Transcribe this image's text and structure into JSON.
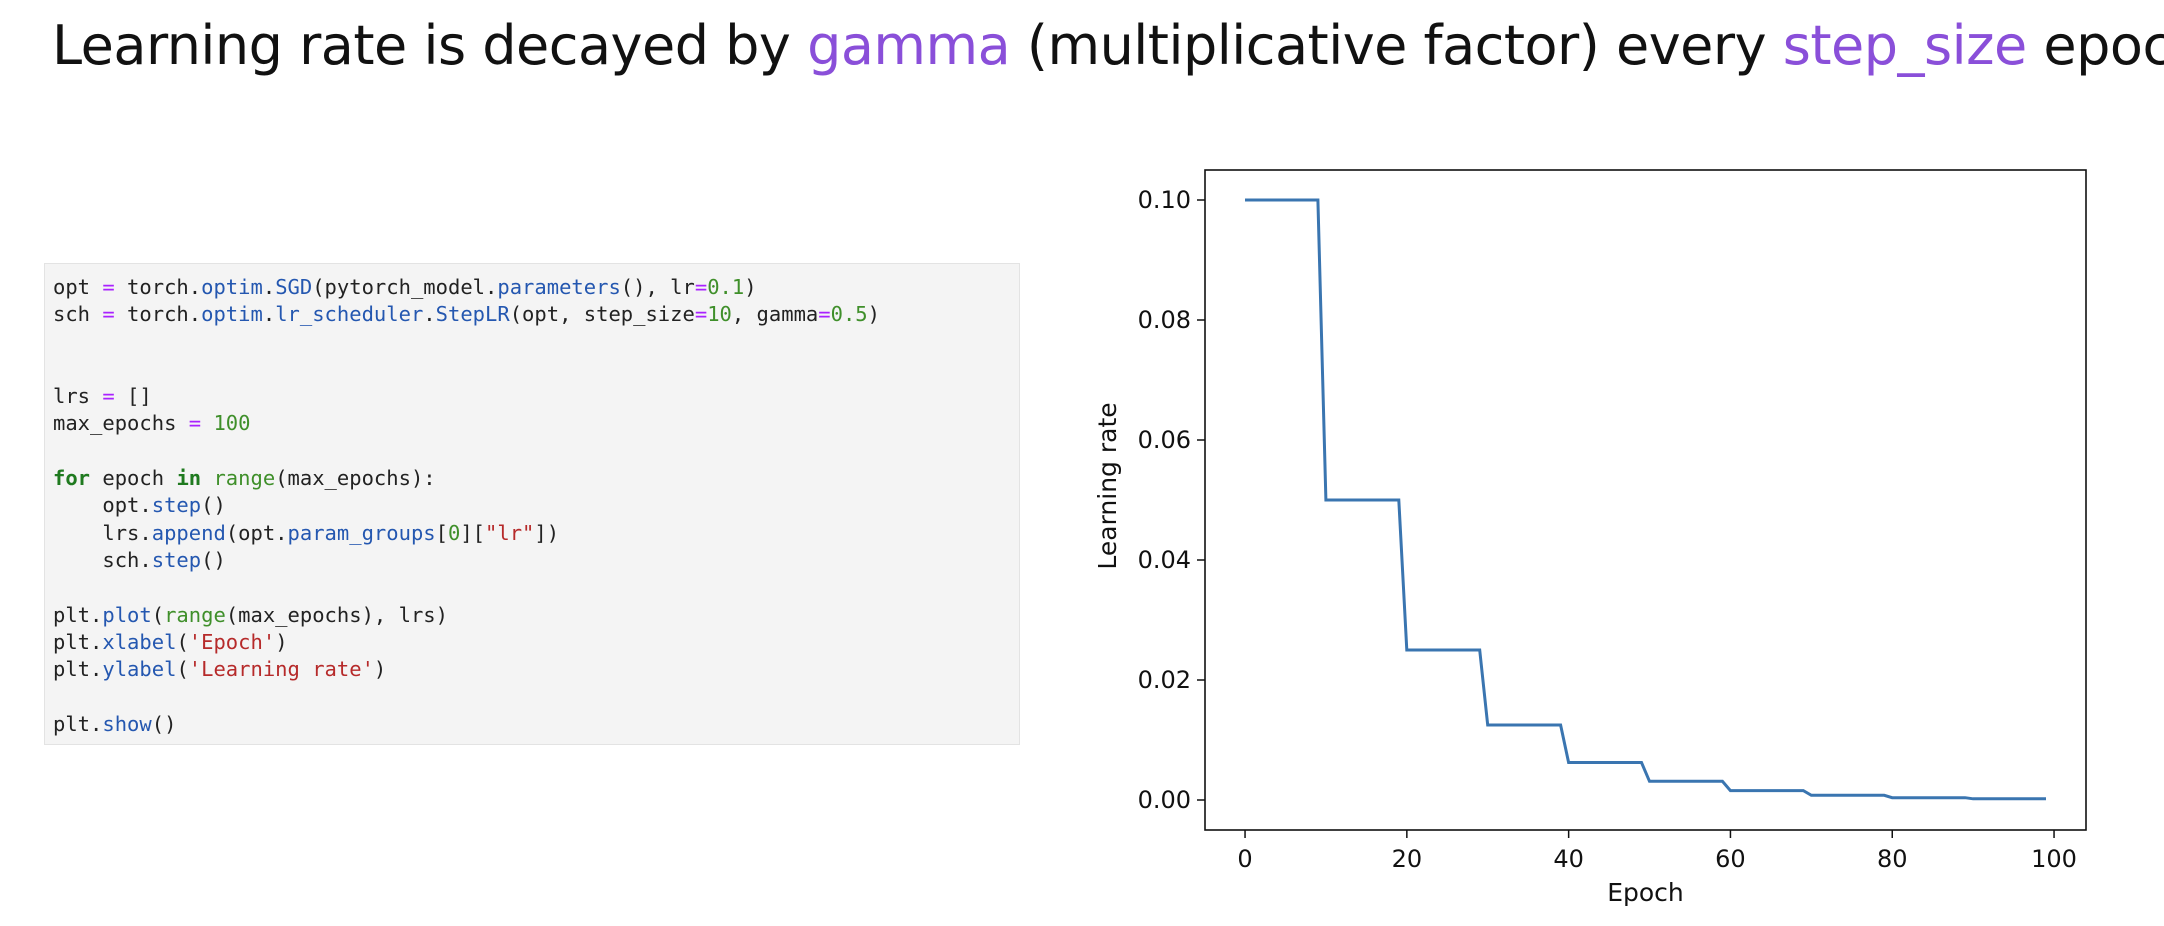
{
  "slide": {
    "title_parts": [
      "Learning rate is decayed by ",
      "gamma",
      " (multiplicative factor) every ",
      "step_size",
      " epochs"
    ],
    "accent_color": "#8a4fd9"
  },
  "code": {
    "lines": [
      [
        [
          "opt ",
          "plain"
        ],
        [
          "=",
          "op"
        ],
        [
          " torch.",
          "plain"
        ],
        [
          "optim",
          "attr"
        ],
        [
          ".",
          "plain"
        ],
        [
          "SGD",
          "attr"
        ],
        [
          "(pytorch_model.",
          "plain"
        ],
        [
          "parameters",
          "attr"
        ],
        [
          "(), lr",
          "plain"
        ],
        [
          "=",
          "op"
        ],
        [
          "0.1",
          "num"
        ],
        [
          ")",
          "plain"
        ]
      ],
      [
        [
          "sch ",
          "plain"
        ],
        [
          "=",
          "op"
        ],
        [
          " torch.",
          "plain"
        ],
        [
          "optim",
          "attr"
        ],
        [
          ".",
          "plain"
        ],
        [
          "lr_scheduler",
          "attr"
        ],
        [
          ".",
          "plain"
        ],
        [
          "StepLR",
          "attr"
        ],
        [
          "(opt, step_size",
          "plain"
        ],
        [
          "=",
          "op"
        ],
        [
          "10",
          "num"
        ],
        [
          ", gamma",
          "plain"
        ],
        [
          "=",
          "op"
        ],
        [
          "0.5",
          "num"
        ],
        [
          ")",
          "plain"
        ]
      ],
      [],
      [],
      [
        [
          "lrs ",
          "plain"
        ],
        [
          "=",
          "op"
        ],
        [
          " []",
          "plain"
        ]
      ],
      [
        [
          "max_epochs ",
          "plain"
        ],
        [
          "=",
          "op"
        ],
        [
          " ",
          "plain"
        ],
        [
          "100",
          "num"
        ]
      ],
      [],
      [
        [
          "for",
          "kw"
        ],
        [
          " epoch ",
          "plain"
        ],
        [
          "in",
          "kw"
        ],
        [
          " ",
          "plain"
        ],
        [
          "range",
          "bi"
        ],
        [
          "(max_epochs):",
          "plain"
        ]
      ],
      [
        [
          "    opt.",
          "plain"
        ],
        [
          "step",
          "attr"
        ],
        [
          "()",
          "plain"
        ]
      ],
      [
        [
          "    lrs.",
          "plain"
        ],
        [
          "append",
          "attr"
        ],
        [
          "(opt.",
          "plain"
        ],
        [
          "param_groups",
          "attr"
        ],
        [
          "[",
          "plain"
        ],
        [
          "0",
          "num"
        ],
        [
          "][",
          "plain"
        ],
        [
          "\"lr\"",
          "str"
        ],
        [
          "])",
          "plain"
        ]
      ],
      [
        [
          "    sch.",
          "plain"
        ],
        [
          "step",
          "attr"
        ],
        [
          "()",
          "plain"
        ]
      ],
      [],
      [
        [
          "plt.",
          "plain"
        ],
        [
          "plot",
          "attr"
        ],
        [
          "(",
          "plain"
        ],
        [
          "range",
          "bi"
        ],
        [
          "(max_epochs), lrs)",
          "plain"
        ]
      ],
      [
        [
          "plt.",
          "plain"
        ],
        [
          "xlabel",
          "attr"
        ],
        [
          "(",
          "plain"
        ],
        [
          "'Epoch'",
          "str"
        ],
        [
          ")",
          "plain"
        ]
      ],
      [
        [
          "plt.",
          "plain"
        ],
        [
          "ylabel",
          "attr"
        ],
        [
          "(",
          "plain"
        ],
        [
          "'Learning rate'",
          "str"
        ],
        [
          ")",
          "plain"
        ]
      ],
      [],
      [
        [
          "plt.",
          "plain"
        ],
        [
          "show",
          "attr"
        ],
        [
          "()",
          "plain"
        ]
      ]
    ]
  },
  "chart_data": {
    "type": "line",
    "title": "",
    "xlabel": "Epoch",
    "ylabel": "Learning rate",
    "xlim": [
      -4.95,
      103.95
    ],
    "ylim": [
      -0.005,
      0.105
    ],
    "xticks": [
      0,
      20,
      40,
      60,
      80,
      100
    ],
    "yticks": [
      0.0,
      0.02,
      0.04,
      0.06,
      0.08,
      0.1
    ],
    "ytick_labels": [
      "0.00",
      "0.02",
      "0.04",
      "0.06",
      "0.08",
      "0.10"
    ],
    "grid": false,
    "line_color": "#3a75b0",
    "series": [
      {
        "x": [
          0,
          9,
          10,
          19,
          20,
          29,
          30,
          39,
          40,
          49,
          50,
          59,
          60,
          69,
          70,
          79,
          80,
          89,
          90,
          99
        ],
        "values": [
          0.1,
          0.1,
          0.05,
          0.05,
          0.025,
          0.025,
          0.0125,
          0.0125,
          0.00625,
          0.00625,
          0.003125,
          0.003125,
          0.0015625,
          0.0015625,
          0.00078125,
          0.00078125,
          0.000390625,
          0.000390625,
          0.0001953125,
          0.0001953125
        ]
      }
    ]
  }
}
